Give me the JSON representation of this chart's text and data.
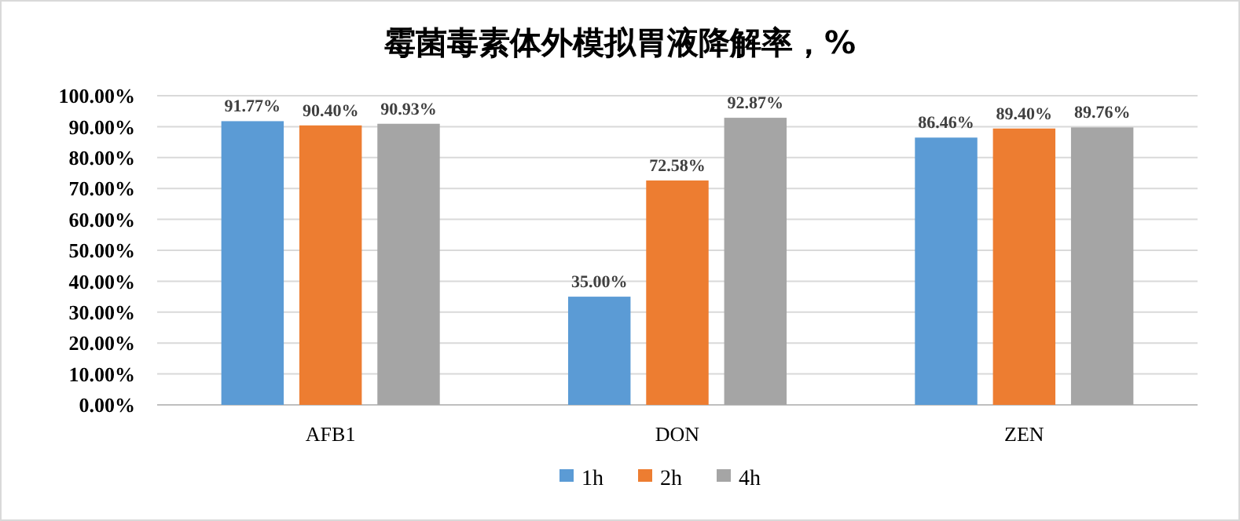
{
  "chart_data": {
    "type": "bar",
    "title": "霉菌毒素体外模拟胃液降解率，%",
    "categories": [
      "AFB1",
      "DON",
      "ZEN"
    ],
    "series": [
      {
        "name": "1h",
        "color": "#5b9bd5",
        "values": [
          91.77,
          35.0,
          86.46
        ],
        "value_labels": [
          "91.77%",
          "35.00%",
          "86.46%"
        ]
      },
      {
        "name": "2h",
        "color": "#ed7d31",
        "values": [
          90.4,
          72.58,
          89.4
        ],
        "value_labels": [
          "90.40%",
          "72.58%",
          "89.40%"
        ]
      },
      {
        "name": "4h",
        "color": "#a5a5a5",
        "values": [
          90.93,
          92.87,
          89.76
        ],
        "value_labels": [
          "90.93%",
          "92.87%",
          "89.76%"
        ]
      }
    ],
    "ylim": [
      0,
      100
    ],
    "yticks": [
      {
        "value": 0,
        "label": "0.00%"
      },
      {
        "value": 10,
        "label": "10.00%"
      },
      {
        "value": 20,
        "label": "20.00%"
      },
      {
        "value": 30,
        "label": "30.00%"
      },
      {
        "value": 40,
        "label": "40.00%"
      },
      {
        "value": 50,
        "label": "50.00%"
      },
      {
        "value": 60,
        "label": "60.00%"
      },
      {
        "value": 70,
        "label": "70.00%"
      },
      {
        "value": 80,
        "label": "80.00%"
      },
      {
        "value": 90,
        "label": "90.00%"
      },
      {
        "value": 100,
        "label": "100.00%"
      }
    ],
    "grid": "y",
    "legend": "bottom"
  }
}
